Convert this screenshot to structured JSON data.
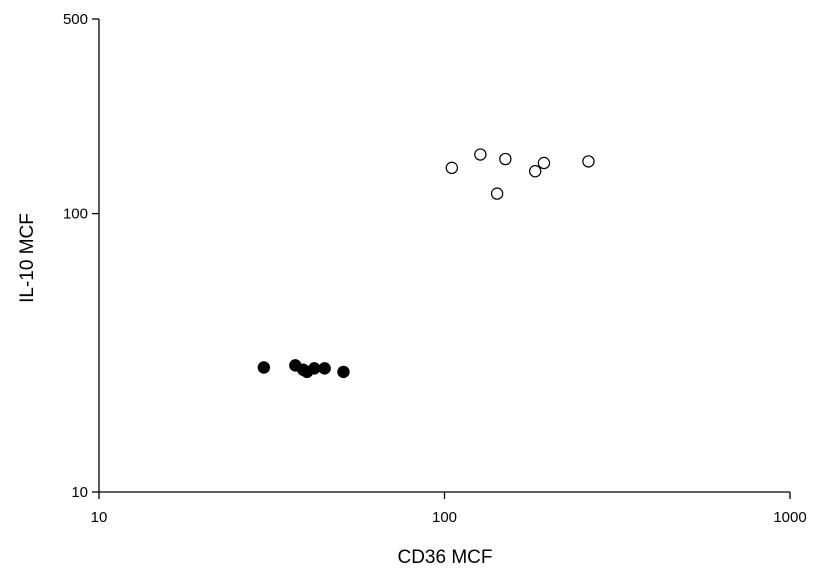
{
  "chart_data": {
    "type": "scatter",
    "title": "",
    "xlabel": "CD36 MCF",
    "ylabel": "IL-10 MCF",
    "xscale": "log",
    "yscale": "log",
    "xlim": [
      10,
      1000
    ],
    "ylim": [
      10,
      500
    ],
    "xticks": [
      "10",
      "100",
      "1000"
    ],
    "yticks": [
      "10",
      "100",
      "500"
    ],
    "grid": false,
    "legend": "none",
    "series": [
      {
        "marker": "filled-circle",
        "color": "#000000",
        "points": [
          {
            "x": 30,
            "y": 28
          },
          {
            "x": 37,
            "y": 28.5
          },
          {
            "x": 39,
            "y": 27.5
          },
          {
            "x": 40,
            "y": 27
          },
          {
            "x": 42,
            "y": 27.8
          },
          {
            "x": 45,
            "y": 27.8
          },
          {
            "x": 51,
            "y": 27
          }
        ]
      },
      {
        "marker": "open-circle",
        "color": "#000000",
        "points": [
          {
            "x": 105,
            "y": 146
          },
          {
            "x": 127,
            "y": 163
          },
          {
            "x": 142,
            "y": 118
          },
          {
            "x": 150,
            "y": 157
          },
          {
            "x": 183,
            "y": 142
          },
          {
            "x": 194,
            "y": 152
          },
          {
            "x": 261,
            "y": 154
          }
        ]
      }
    ]
  }
}
